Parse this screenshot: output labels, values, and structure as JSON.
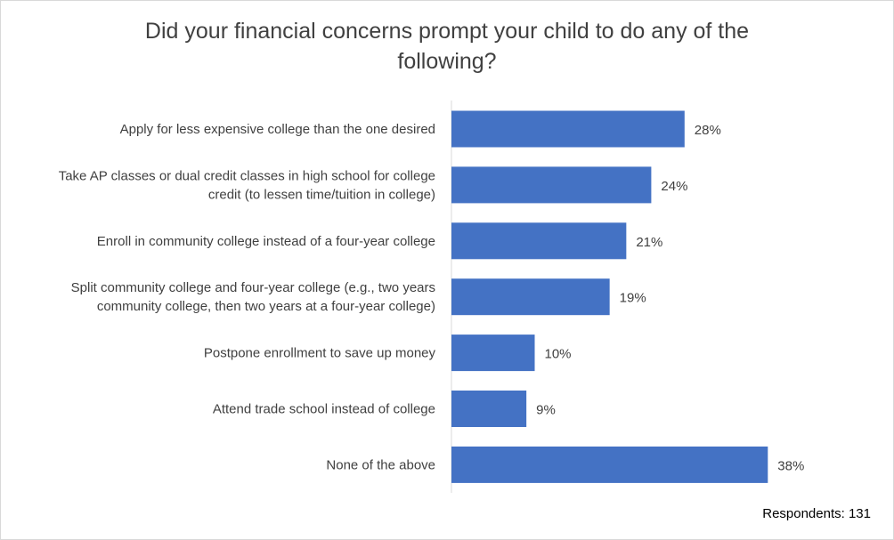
{
  "chart_data": {
    "type": "bar",
    "orientation": "horizontal",
    "title_lines": [
      "Did your financial concerns prompt your child to do any of the",
      "following?"
    ],
    "categories": [
      [
        "Apply for less expensive college than the one desired"
      ],
      [
        "Take AP classes or dual credit classes in high school for college",
        "credit (to lessen time/tuition in college)"
      ],
      [
        "Enroll in community college instead of a four-year college"
      ],
      [
        "Split community college and four-year college (e.g., two years",
        "community college, then two years at a four-year college)"
      ],
      [
        "Postpone enrollment to save up money"
      ],
      [
        "Attend trade school instead of college"
      ],
      [
        "None of the above"
      ]
    ],
    "values": [
      28,
      24,
      21,
      19,
      10,
      9,
      38
    ],
    "value_labels": [
      "28%",
      "24%",
      "21%",
      "19%",
      "10%",
      "9%",
      "38%"
    ],
    "bar_color": "#4472c4",
    "grid": false,
    "legend": "none"
  },
  "footnote": "Respondents: 131"
}
